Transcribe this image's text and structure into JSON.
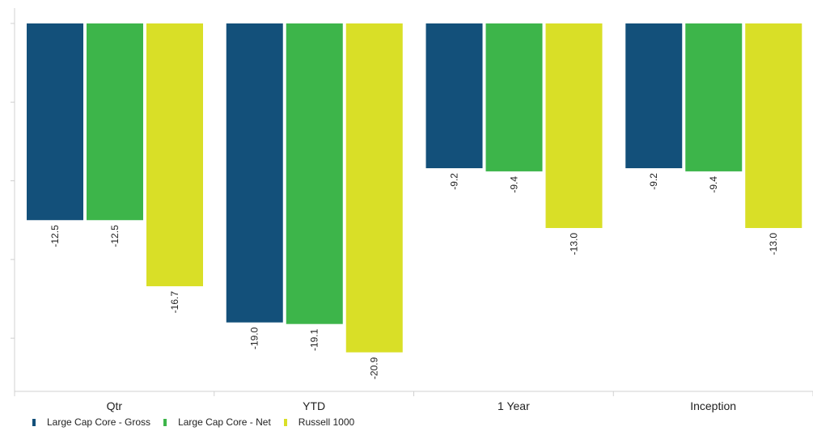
{
  "chart_data": {
    "type": "bar",
    "categories": [
      "Qtr",
      "YTD",
      "1 Year",
      "Inception"
    ],
    "series": [
      {
        "name": "Large Cap Core - Gross",
        "color": "#13507a",
        "values": [
          -12.5,
          -19.0,
          -9.2,
          -9.2
        ],
        "labels": [
          "-12.5",
          "-19.0",
          "-9.2",
          "-9.2"
        ]
      },
      {
        "name": "Large Cap Core - Net",
        "color": "#3db54a",
        "values": [
          -12.5,
          -19.1,
          -9.4,
          -9.4
        ],
        "labels": [
          "-12.5",
          "-19.1",
          "-9.4",
          "-9.4"
        ]
      },
      {
        "name": "Russell 1000",
        "color": "#d9df27",
        "values": [
          -16.7,
          -20.9,
          -13.0,
          -13.0
        ],
        "labels": [
          "-16.7",
          "-20.9",
          "-13.0",
          "-13.0"
        ]
      }
    ],
    "ylim": [
      -23.5,
      0
    ],
    "legend_position": "bottom-left",
    "grid": false
  }
}
